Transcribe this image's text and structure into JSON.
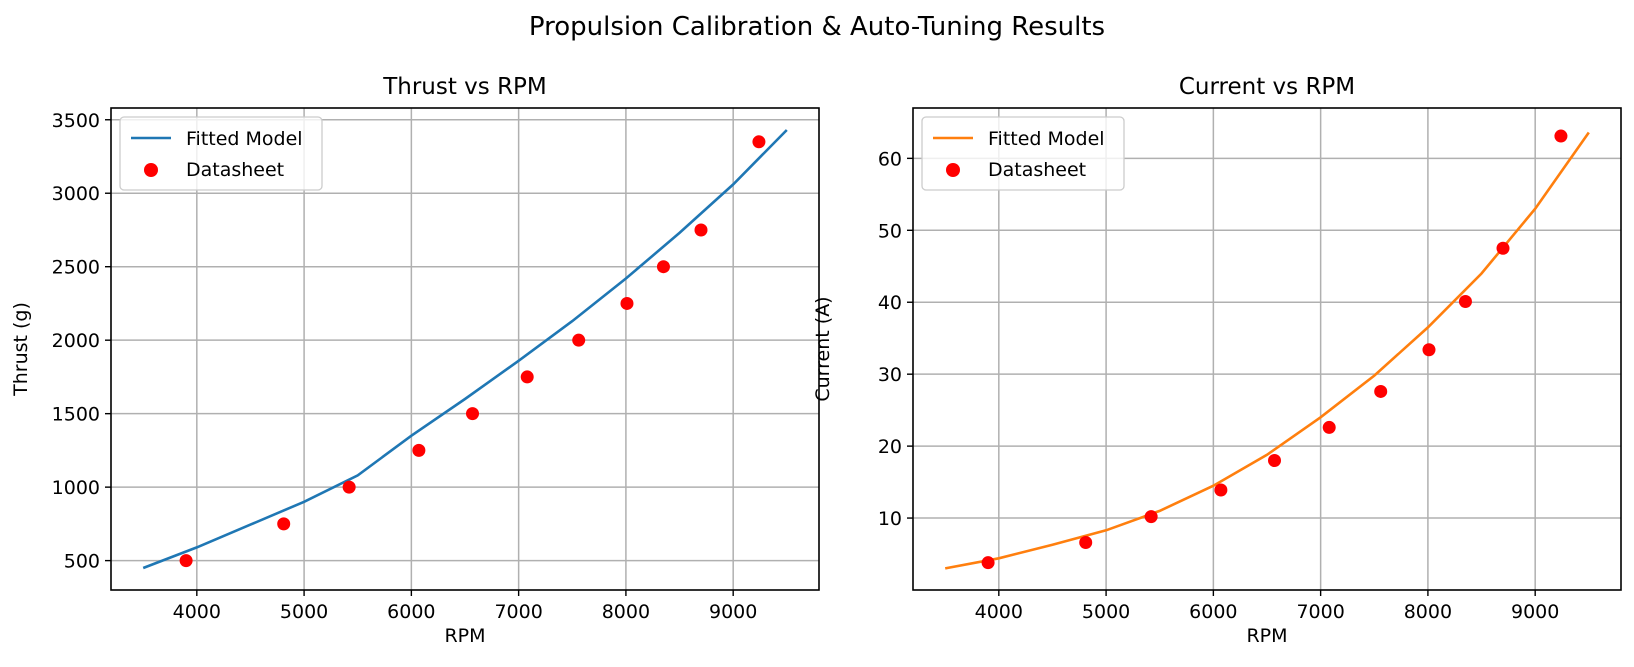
{
  "figure": {
    "suptitle": "Propulsion Calibration & Auto-Tuning Results"
  },
  "chart_data": [
    {
      "type": "line",
      "title": "Thrust vs RPM",
      "xlabel": "RPM",
      "ylabel": "Thrust (g)",
      "xlim": [
        3200,
        9800
      ],
      "ylim": [
        300,
        3580
      ],
      "xticks": [
        4000,
        5000,
        6000,
        7000,
        8000,
        9000
      ],
      "yticks": [
        500,
        1000,
        1500,
        2000,
        2500,
        3000,
        3500
      ],
      "grid": true,
      "legend_position": "upper-left",
      "series": [
        {
          "name": "Fitted Model",
          "kind": "line",
          "color": "#1f77b4",
          "x": [
            3500,
            4000,
            4500,
            5000,
            5500,
            6000,
            6500,
            7000,
            7500,
            8000,
            8500,
            9000,
            9500
          ],
          "y": [
            450,
            590,
            745,
            900,
            1080,
            1350,
            1600,
            1860,
            2130,
            2420,
            2730,
            3060,
            3430
          ]
        },
        {
          "name": "Datasheet",
          "kind": "scatter",
          "color": "#ff0000",
          "x": [
            3900,
            4810,
            5420,
            6070,
            6570,
            7080,
            7560,
            8010,
            8350,
            8700,
            9240
          ],
          "y": [
            500,
            750,
            1000,
            1250,
            1500,
            1750,
            2000,
            2250,
            2500,
            2750,
            3350
          ]
        }
      ]
    },
    {
      "type": "line",
      "title": "Current vs RPM",
      "xlabel": "RPM",
      "ylabel": "Current (A)",
      "xlim": [
        3200,
        9800
      ],
      "ylim": [
        0,
        67
      ],
      "xticks": [
        4000,
        5000,
        6000,
        7000,
        8000,
        9000
      ],
      "yticks": [
        10,
        20,
        30,
        40,
        50,
        60
      ],
      "grid": true,
      "legend_position": "upper-left",
      "series": [
        {
          "name": "Fitted Model",
          "kind": "line",
          "color": "#ff7f0e",
          "x": [
            3500,
            4000,
            4500,
            5000,
            5500,
            6000,
            6500,
            7000,
            7500,
            8000,
            8500,
            9000,
            9500
          ],
          "y": [
            3.0,
            4.4,
            6.3,
            8.3,
            11.0,
            14.5,
            18.8,
            24.0,
            29.8,
            36.5,
            44.0,
            53.0,
            63.6
          ]
        },
        {
          "name": "Datasheet",
          "kind": "scatter",
          "color": "#ff0000",
          "x": [
            3900,
            4810,
            5420,
            6070,
            6570,
            7080,
            7560,
            8010,
            8350,
            8700,
            9240
          ],
          "y": [
            3.8,
            6.6,
            10.2,
            13.9,
            18.0,
            22.6,
            27.6,
            33.4,
            40.1,
            47.5,
            63.1
          ]
        }
      ]
    }
  ]
}
